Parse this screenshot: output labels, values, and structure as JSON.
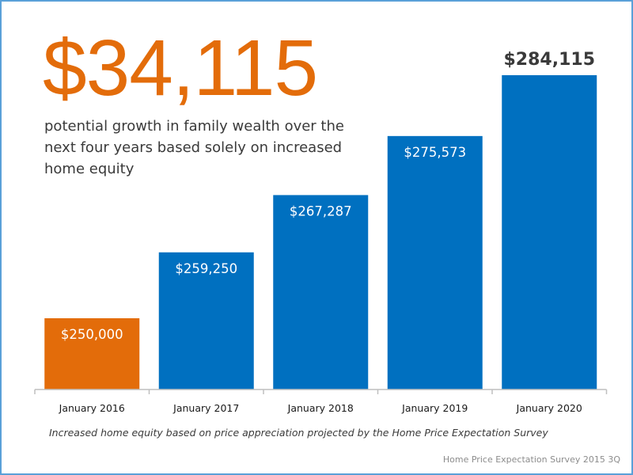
{
  "headline": {
    "value": "$34,115",
    "color": "#e36c0a"
  },
  "subhead": "potential growth in family wealth over the next four years based solely on increased home equity",
  "footnote": "Increased home equity based on price appreciation projected by the Home Price Expectation Survey",
  "source": "Home Price Expectation Survey 2015 3Q",
  "chart_data": {
    "type": "bar",
    "title": "",
    "xlabel": "",
    "ylabel": "",
    "categories": [
      "January 2016",
      "January 2017",
      "January 2018",
      "January 2019",
      "January 2020"
    ],
    "values": [
      250000,
      259250,
      267287,
      275573,
      284115
    ],
    "data_labels": [
      "$250,000",
      "$259,250",
      "$267,287",
      "$275,573",
      "$284,115"
    ],
    "bar_colors": [
      "#e36c0a",
      "#0070c0",
      "#0070c0",
      "#0070c0",
      "#0070c0"
    ],
    "highlight_label_outside_last_bar": true,
    "ylim": [
      240000,
      285000
    ],
    "grid": false,
    "legend": "none",
    "axis_color": "#bfbfbf"
  }
}
